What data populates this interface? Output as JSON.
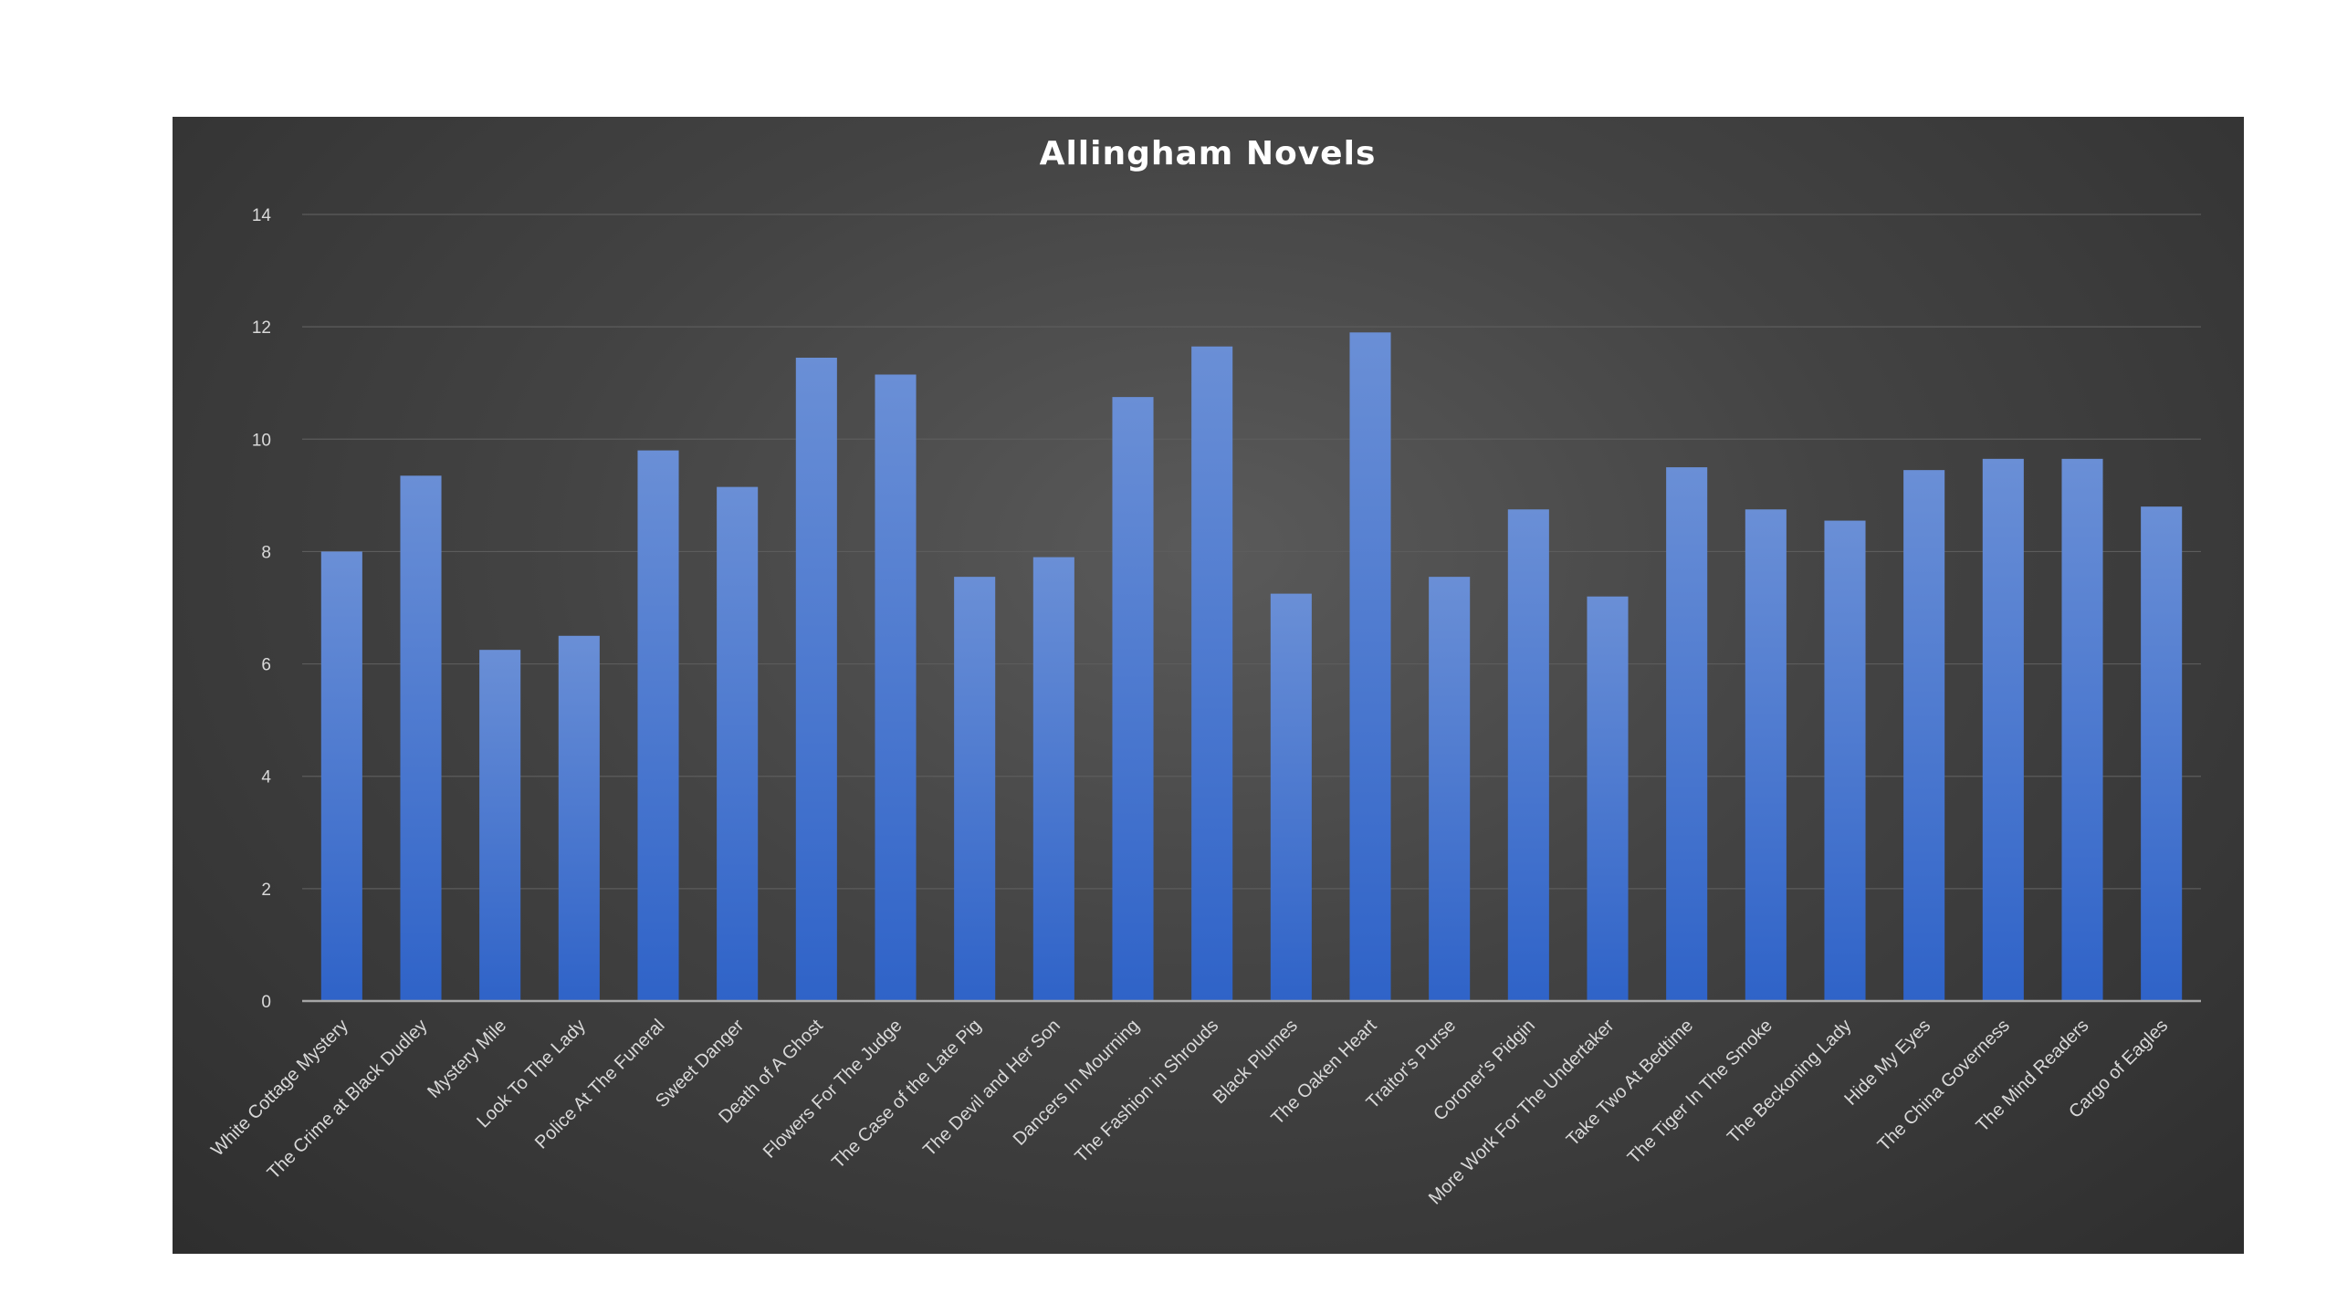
{
  "chart_data": {
    "type": "bar",
    "title": "Allingham Novels",
    "xlabel": "",
    "ylabel": "",
    "ylim": [
      0,
      14
    ],
    "yticks": [
      "0",
      "2",
      "4",
      "6",
      "8",
      "10",
      "12",
      "14"
    ],
    "grid": true,
    "legend": "none",
    "colors": {
      "bar_top": "#6a8fd6",
      "bar_bottom": "#2f63c8",
      "panel_bg": "#404040"
    },
    "categories": [
      "White Cottage Mystery",
      "The Crime at Black Dudley",
      "Mystery Mile",
      "Look To The Lady",
      "Police At The Funeral",
      "Sweet Danger",
      "Death of A Ghost",
      "Flowers For The Judge",
      "The Case of the Late Pig",
      "The Devil and Her Son",
      "Dancers In Mourning",
      "The Fashion in Shrouds",
      "Black Plumes",
      "The Oaken Heart",
      "Traitor's Purse",
      "Coroner's Pidgin",
      "More Work For The Undertaker",
      "Take Two At Bedtime",
      "The Tiger In The Smoke",
      "The Beckoning Lady",
      "Hide My Eyes",
      "The China Governess",
      "The Mind Readers",
      "Cargo of Eagles"
    ],
    "values": [
      8.0,
      9.35,
      6.25,
      6.5,
      9.8,
      9.15,
      11.45,
      11.15,
      7.55,
      7.9,
      10.75,
      11.65,
      7.25,
      11.9,
      7.55,
      8.75,
      7.2,
      9.5,
      8.75,
      8.55,
      9.45,
      9.65,
      9.65,
      8.8
    ]
  }
}
